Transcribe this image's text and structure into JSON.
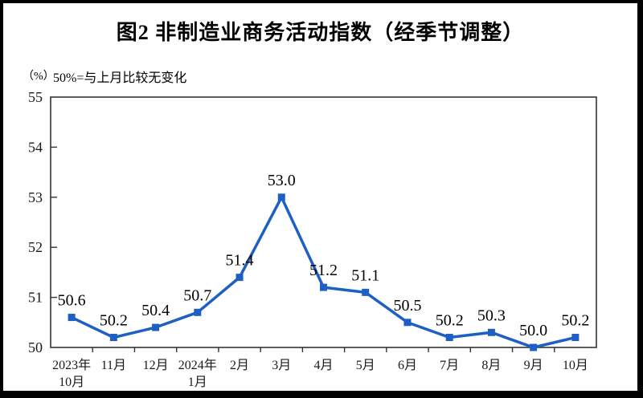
{
  "title": "图2 非制造业商务活动指数（经季节调整）",
  "y_axis_unit": "（%）",
  "note": "50%=与上月比较无变化",
  "colors": {
    "line": "#1d5fc4",
    "axis": "#333333",
    "frame": "#000000",
    "background": "#ffffff"
  },
  "chart_data": {
    "type": "line",
    "title": "图2 非制造业商务活动指数（经季节调整）",
    "subtitle": "50%=与上月比较无变化",
    "ylabel": "（%）",
    "xlabel": "",
    "ylim": [
      50,
      55
    ],
    "yticks": [
      50,
      51,
      52,
      53,
      54,
      55
    ],
    "grid": false,
    "legend": "none",
    "marker": "square",
    "categories": [
      [
        "2023年",
        "10月"
      ],
      [
        "11月"
      ],
      [
        "12月"
      ],
      [
        "2024年",
        "1月"
      ],
      [
        "2月"
      ],
      [
        "3月"
      ],
      [
        "4月"
      ],
      [
        "5月"
      ],
      [
        "6月"
      ],
      [
        "7月"
      ],
      [
        "8月"
      ],
      [
        "9月"
      ],
      [
        "10月"
      ]
    ],
    "values": [
      50.6,
      50.2,
      50.4,
      50.7,
      51.4,
      53.0,
      51.2,
      51.1,
      50.5,
      50.2,
      50.3,
      50.0,
      50.2
    ],
    "value_labels": [
      "50.6",
      "50.2",
      "50.4",
      "50.7",
      "51.4",
      "53.0",
      "51.2",
      "51.1",
      "50.5",
      "50.2",
      "50.3",
      "50.0",
      "50.2"
    ]
  }
}
